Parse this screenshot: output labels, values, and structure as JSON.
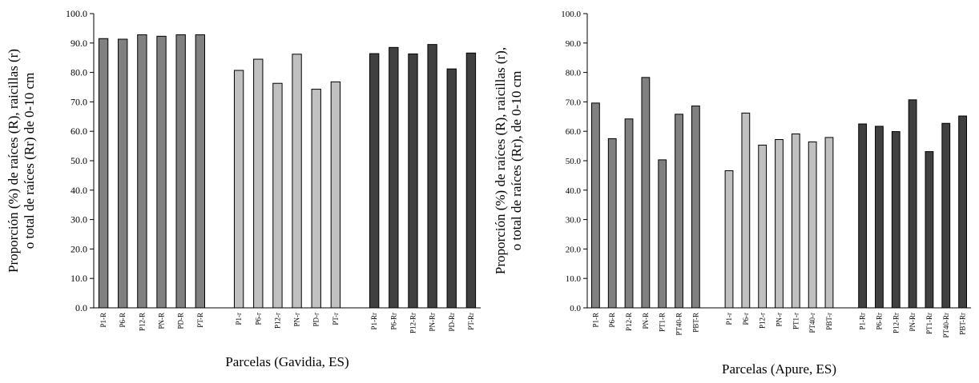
{
  "chart_data": [
    {
      "type": "bar",
      "ylabel": [
        "Proporción (%) de raíces (R), raicillas (r)",
        "o total de raíces (Rr) de 0-10 cm"
      ],
      "xlabel": "Parcelas (Gavidia, ES)",
      "categories": [
        "P1-R",
        "P6-R",
        "P12-R",
        "PN-R",
        "PD-R",
        "PT-R",
        null,
        "P1-r",
        "P6-r",
        "P12-r",
        "PN-r",
        "PD-r",
        "PT-r",
        null,
        "P1-Rr",
        "P6-Rr",
        "P12-Rr",
        "PN-Rr",
        "PD-Rr",
        "PT-Rr"
      ],
      "series": [
        {
          "color": "#808080",
          "values": [
            91.5,
            91.3,
            92.8,
            92.3,
            92.8,
            92.8,
            null,
            null,
            null,
            null,
            null,
            null,
            null,
            null,
            null,
            null,
            null,
            null,
            null,
            null
          ]
        },
        {
          "color": "#c0c0c0",
          "values": [
            null,
            null,
            null,
            null,
            null,
            null,
            null,
            80.7,
            84.5,
            76.3,
            86.2,
            74.3,
            76.8,
            null,
            null,
            null,
            null,
            null,
            null,
            null
          ]
        },
        {
          "color": "#404040",
          "values": [
            null,
            null,
            null,
            null,
            null,
            null,
            null,
            null,
            null,
            null,
            null,
            null,
            null,
            null,
            86.4,
            88.5,
            86.3,
            89.5,
            81.2,
            86.6
          ]
        }
      ],
      "ylim": [
        0,
        100
      ],
      "yticks": [
        {
          "value": 0,
          "label": "0.0"
        },
        {
          "value": 10,
          "label": "10.0"
        },
        {
          "value": 20,
          "label": "20.0"
        },
        {
          "value": 30,
          "label": "30.0"
        },
        {
          "value": 40,
          "label": "40.0"
        },
        {
          "value": 50,
          "label": "50.0"
        },
        {
          "value": 60,
          "label": "60.0"
        },
        {
          "value": 70,
          "label": "70.0"
        },
        {
          "value": 80,
          "label": "80.0"
        },
        {
          "value": 90,
          "label": "90.0"
        },
        {
          "value": 100,
          "label": "100.0"
        }
      ]
    },
    {
      "type": "bar",
      "ylabel": [
        "Proporción (%) de raíces (R), raicillas (r),",
        "o total de raíces (Rr), de 0-10 cm"
      ],
      "xlabel": "Parcelas (Apure, ES)",
      "categories": [
        "P1-R",
        "P6-R",
        "P12-R",
        "PN-R",
        "PT1-R",
        "PT40-R",
        "PBT-R",
        null,
        "P1-r",
        "P6-r",
        "P12-r",
        "PN-r",
        "PT1-r",
        "PT40-r",
        "PBT-r",
        null,
        "P1-Rr",
        "P6-Rr",
        "P12-Rr",
        "PN-Rr",
        "PT1-Rr",
        "PT40-Rr",
        "PBT-Rr"
      ],
      "series": [
        {
          "color": "#808080",
          "values": [
            69.6,
            57.5,
            64.2,
            78.3,
            50.3,
            65.8,
            68.6,
            null,
            null,
            null,
            null,
            null,
            null,
            null,
            null,
            null,
            null,
            null,
            null,
            null,
            null,
            null,
            null
          ]
        },
        {
          "color": "#c0c0c0",
          "values": [
            null,
            null,
            null,
            null,
            null,
            null,
            null,
            null,
            46.6,
            66.2,
            55.3,
            57.2,
            59.1,
            56.4,
            57.9,
            null,
            null,
            null,
            null,
            null,
            null,
            null,
            null
          ]
        },
        {
          "color": "#404040",
          "values": [
            null,
            null,
            null,
            null,
            null,
            null,
            null,
            null,
            null,
            null,
            null,
            null,
            null,
            null,
            null,
            null,
            62.5,
            61.7,
            59.9,
            70.7,
            53.1,
            62.7,
            65.2
          ]
        }
      ],
      "ylim": [
        0,
        100
      ],
      "yticks": [
        {
          "value": 0,
          "label": "0.0"
        },
        {
          "value": 10,
          "label": "10.0"
        },
        {
          "value": 20,
          "label": "20.0"
        },
        {
          "value": 30,
          "label": "30.0"
        },
        {
          "value": 40,
          "label": "40.0"
        },
        {
          "value": 50,
          "label": "50.0"
        },
        {
          "value": 60,
          "label": "60.0"
        },
        {
          "value": 70,
          "label": "70.0"
        },
        {
          "value": 80,
          "label": "80.0"
        },
        {
          "value": 90,
          "label": "90.0"
        },
        {
          "value": 100,
          "label": "100.0"
        }
      ]
    }
  ]
}
